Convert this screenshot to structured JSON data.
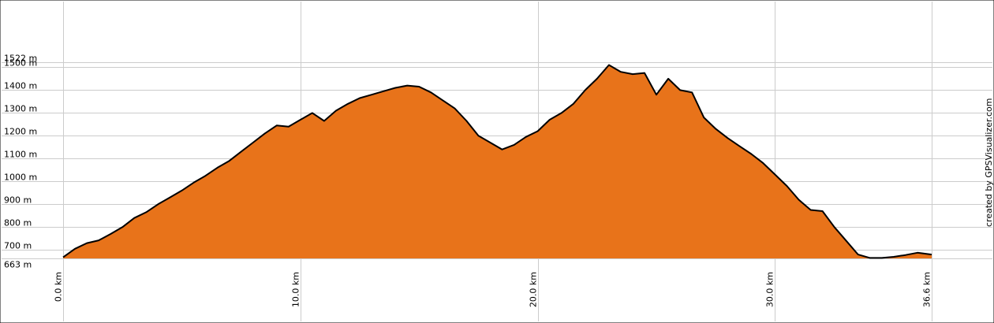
{
  "chart_data": {
    "type": "area",
    "title": "",
    "xlabel": "",
    "ylabel": "",
    "xlim": [
      0,
      36.6
    ],
    "ylim": [
      663,
      1522
    ],
    "x_ticks": [
      "0.0 km",
      "10.0 km",
      "20.0 km",
      "30.0 km",
      "36.6 km"
    ],
    "x_tick_values": [
      0,
      10,
      20,
      30,
      36.6
    ],
    "y_ticks": [
      "1522 m",
      "1500 m",
      "1400 m",
      "1300 m",
      "1200 m",
      "1100 m",
      "1000 m",
      "900 m",
      "800 m",
      "700 m",
      "663 m"
    ],
    "y_tick_values": [
      1522,
      1500,
      1400,
      1300,
      1200,
      1100,
      1000,
      900,
      800,
      700,
      663
    ],
    "grid": true,
    "fill_color": "#E8731A",
    "line_color": "#000000",
    "series": [
      {
        "x": [
          0,
          0.5,
          1.0,
          1.5,
          2.0,
          2.5,
          3.0,
          3.5,
          4.0,
          4.5,
          5.0,
          5.5,
          6.0,
          6.5,
          7.0,
          7.5,
          8.0,
          8.5,
          9.0,
          9.5,
          10.0,
          10.5,
          11.0,
          11.5,
          12.0,
          12.5,
          13.0,
          13.5,
          14.0,
          14.5,
          15.0,
          15.5,
          16.0,
          16.5,
          17.0,
          17.5,
          18.0,
          18.5,
          19.0,
          19.5,
          20.0,
          20.5,
          21.0,
          21.5,
          22.0,
          22.5,
          23.0,
          23.5,
          24.0,
          24.5,
          25.0,
          25.5,
          26.0,
          26.5,
          27.0,
          27.5,
          28.0,
          28.5,
          29.0,
          29.5,
          30.0,
          30.5,
          31.0,
          31.5,
          32.0,
          32.5,
          33.0,
          33.5,
          34.0,
          34.5,
          35.0,
          35.5,
          36.0,
          36.6
        ],
        "y": [
          668,
          705,
          730,
          742,
          770,
          800,
          840,
          865,
          900,
          930,
          960,
          995,
          1025,
          1060,
          1090,
          1130,
          1170,
          1210,
          1245,
          1240,
          1270,
          1300,
          1265,
          1310,
          1340,
          1365,
          1380,
          1395,
          1410,
          1420,
          1415,
          1390,
          1355,
          1320,
          1265,
          1200,
          1170,
          1140,
          1160,
          1195,
          1220,
          1270,
          1300,
          1340,
          1400,
          1450,
          1510,
          1480,
          1470,
          1475,
          1380,
          1450,
          1400,
          1390,
          1280,
          1230,
          1190,
          1155,
          1120,
          1080,
          1030,
          980,
          920,
          875,
          870,
          800,
          740,
          680,
          665,
          665,
          670,
          678,
          688,
          680
        ]
      }
    ]
  },
  "credit": "created by GPSVisualizer.com"
}
